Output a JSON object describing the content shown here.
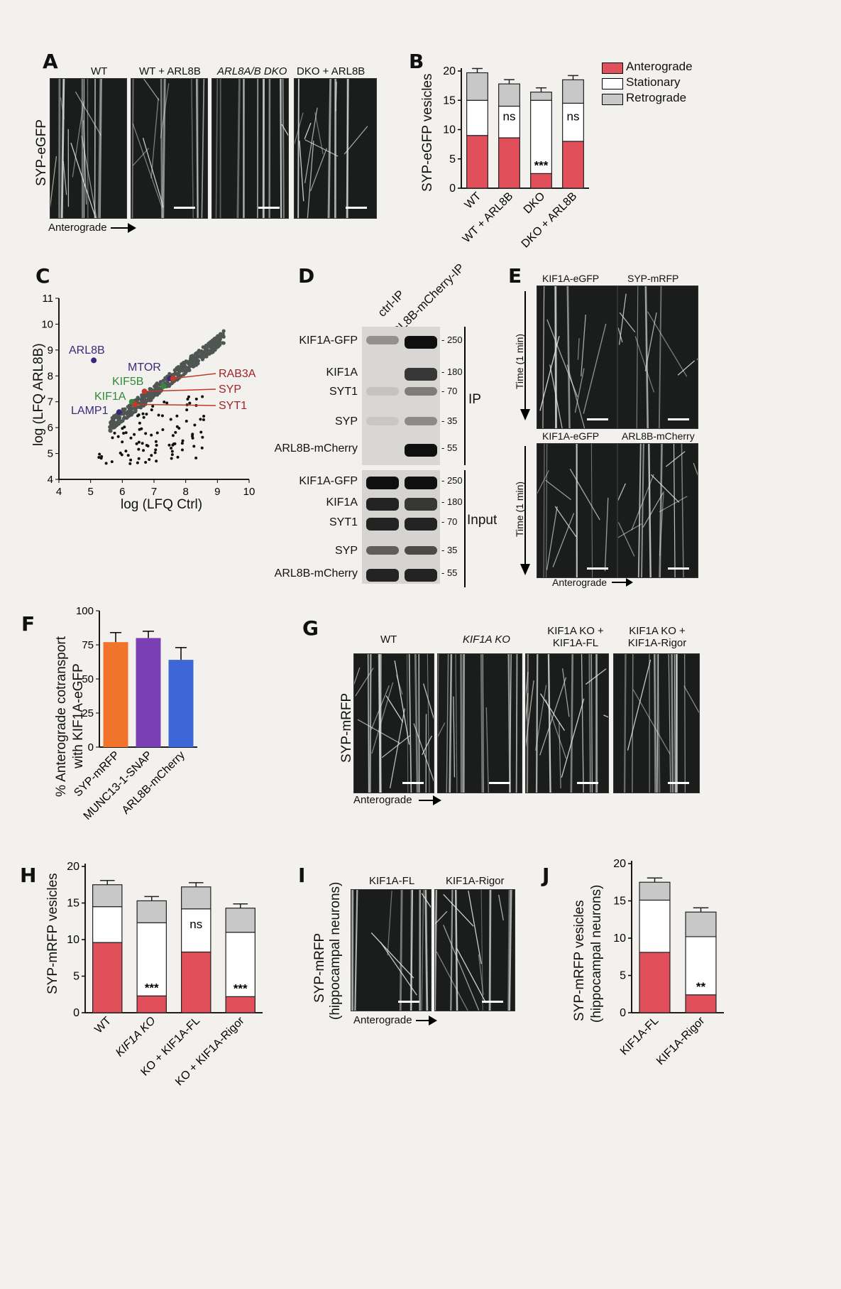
{
  "panels": {
    "A": "A",
    "B": "B",
    "C": "C",
    "D": "D",
    "E": "E",
    "F": "F",
    "G": "G",
    "H": "H",
    "I": "I",
    "J": "J"
  },
  "panelA": {
    "row_label": "SYP-eGFP",
    "conditions": [
      "WT",
      "WT + ARL8B",
      "ARL8A/B DKO",
      "DKO + ARL8B"
    ],
    "arrow_label": "Anterograde"
  },
  "legend": [
    "Anterograde",
    "Stationary",
    "Retrograde"
  ],
  "colors": {
    "anterograde": "#e1505a",
    "stationary": "#ffffff",
    "retrograde": "#c8c8c8",
    "scatter_highlight": "#c0392b",
    "purple": "#7b3fb4",
    "blue": "#3d66d6",
    "orange": "#f0742a"
  },
  "panelD": {
    "columns": [
      "ctrl-IP",
      "ARL8B-mCherry-IP"
    ],
    "ip_rows": [
      "KIF1A-GFP",
      "KIF1A",
      "SYT1",
      "SYP",
      "ARL8B-mCherry"
    ],
    "input_rows": [
      "KIF1A-GFP",
      "KIF1A",
      "SYT1",
      "SYP",
      "ARL8B-mCherry"
    ],
    "ip_markers": [
      "250",
      "180",
      "70",
      "35",
      "55"
    ],
    "input_markers": [
      "250",
      "180",
      "70",
      "35",
      "55"
    ],
    "ip_label": "IP",
    "input_label": "Input"
  },
  "panelE": {
    "top": [
      "KIF1A-eGFP",
      "SYP-mRFP"
    ],
    "bottom": [
      "KIF1A-eGFP",
      "ARL8B-mCherry"
    ],
    "time_label": "Time (1 min)",
    "arrow_label": "Anterograde"
  },
  "panelG": {
    "row_label": "SYP-mRFP",
    "conditions": [
      "WT",
      "KIF1A KO",
      "KIF1A KO + KIF1A-FL",
      "KIF1A KO + KIF1A-Rigor"
    ],
    "arrow_label": "Anterograde"
  },
  "panelI": {
    "row_label": "SYP-mRFP (hippocampal neurons)",
    "row_label_1": "SYP-mRFP",
    "row_label_2": "(hippocampal neurons)",
    "conditions": [
      "KIF1A-FL",
      "KIF1A-Rigor"
    ],
    "arrow_label": "Anterograde"
  },
  "chart_data": [
    {
      "panel": "B",
      "type": "bar",
      "stacked": true,
      "ylabel": "SYP-eGFP vesicles",
      "ylim": [
        0,
        20
      ],
      "yticks": [
        0,
        5,
        10,
        15,
        20
      ],
      "categories": [
        "WT",
        "WT + ARL8B",
        "DKO",
        "DKO + ARL8B"
      ],
      "series": [
        {
          "name": "Anterograde",
          "values": [
            9,
            8.6,
            2.5,
            8
          ]
        },
        {
          "name": "Stationary",
          "values": [
            6,
            5.4,
            12.5,
            6.5
          ]
        },
        {
          "name": "Retrograde",
          "values": [
            4.7,
            3.8,
            1.4,
            4
          ]
        }
      ],
      "annotations": [
        "",
        "ns",
        "***",
        "ns"
      ],
      "legend": "top-right"
    },
    {
      "panel": "C",
      "type": "scatter",
      "xlabel": "log (LFQ Ctrl)",
      "ylabel": "log (LFQ ARL8B)",
      "xlim": [
        4,
        10
      ],
      "ylim": [
        4,
        11
      ],
      "xticks": [
        4,
        5,
        6,
        7,
        8,
        9,
        10
      ],
      "yticks": [
        4,
        5,
        6,
        7,
        8,
        9,
        10,
        11
      ],
      "highlights": [
        {
          "label": "ARL8B",
          "x": 5.1,
          "y": 8.6
        },
        {
          "label": "MTOR",
          "x": 7.5,
          "y": 7.9
        },
        {
          "label": "KIF5B",
          "x": 7.3,
          "y": 7.6
        },
        {
          "label": "KIF1A",
          "x": 6.3,
          "y": 7.0
        },
        {
          "label": "LAMP1",
          "x": 5.9,
          "y": 6.6
        },
        {
          "label": "RAB3A",
          "x": 7.6,
          "y": 7.9
        },
        {
          "label": "SYP",
          "x": 6.7,
          "y": 7.4
        },
        {
          "label": "SYT1",
          "x": 6.4,
          "y": 6.9
        }
      ]
    },
    {
      "panel": "F",
      "type": "bar",
      "ylabel": "% Anterograde cotransport with KIF1A-eGFP",
      "ylabel_1": "% Anterograde cotransport",
      "ylabel_2": "with KIF1A-eGFP",
      "ylim": [
        0,
        100
      ],
      "yticks": [
        0,
        25,
        50,
        75,
        100
      ],
      "categories": [
        "SYP-mRFP",
        "MUNC13-1-SNAP",
        "ARL8B-mCherry"
      ],
      "values": [
        77,
        80,
        64
      ],
      "errors": [
        7,
        5,
        9
      ]
    },
    {
      "panel": "H",
      "type": "bar",
      "stacked": true,
      "ylabel": "SYP-mRFP vesicles",
      "ylim": [
        0,
        20
      ],
      "yticks": [
        0,
        5,
        10,
        15,
        20
      ],
      "categories": [
        "WT",
        "KIF1A KO",
        "KO + KIF1A-FL",
        "KO + KIF1A-Rigor"
      ],
      "series": [
        {
          "name": "Anterograde",
          "values": [
            9.6,
            2.3,
            8.3,
            2.2
          ]
        },
        {
          "name": "Stationary",
          "values": [
            4.9,
            10.0,
            5.9,
            8.8
          ]
        },
        {
          "name": "Retrograde",
          "values": [
            3,
            3,
            3,
            3.3
          ]
        }
      ],
      "annotations": [
        "",
        "***",
        "ns",
        "***"
      ]
    },
    {
      "panel": "J",
      "type": "bar",
      "stacked": true,
      "ylabel": "SYP-mRFP vesicles (hippocampal neurons)",
      "ylabel_1": "SYP-mRFP vesicles",
      "ylabel_2": "(hippocampal neurons)",
      "ylim": [
        0,
        20
      ],
      "yticks": [
        0,
        5,
        10,
        15,
        20
      ],
      "categories": [
        "KIF1A-FL",
        "KIF1A-Rigor"
      ],
      "series": [
        {
          "name": "Anterograde",
          "values": [
            8.1,
            2.4
          ]
        },
        {
          "name": "Stationary",
          "values": [
            7,
            7.8
          ]
        },
        {
          "name": "Retrograde",
          "values": [
            2.4,
            3.3
          ]
        }
      ],
      "annotations": [
        "",
        "**"
      ]
    }
  ]
}
